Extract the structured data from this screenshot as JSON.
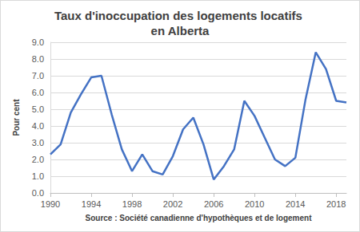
{
  "chart_data": {
    "type": "line",
    "title": "Taux d'inoccupation des logements locatifs en Alberta",
    "x_label": "Source : Société canadienne d'hypothèques et de logement",
    "y_label": "Pour cent",
    "x": [
      1990,
      1991,
      1992,
      1993,
      1994,
      1995,
      1996,
      1997,
      1998,
      1999,
      2000,
      2001,
      2002,
      2003,
      2004,
      2005,
      2006,
      2007,
      2008,
      2009,
      2010,
      2011,
      2012,
      2013,
      2014,
      2015,
      2016,
      2017,
      2018,
      2019
    ],
    "values": [
      2.3,
      2.9,
      4.8,
      5.9,
      6.9,
      7.0,
      4.7,
      2.6,
      1.3,
      2.3,
      1.3,
      1.1,
      2.2,
      3.8,
      4.5,
      2.9,
      0.8,
      1.6,
      2.6,
      5.5,
      4.6,
      3.3,
      2.0,
      1.6,
      2.1,
      5.6,
      8.4,
      7.4,
      5.5,
      5.4
    ],
    "color": "#4472c4",
    "marker": "none",
    "xlim": [
      1990,
      2019
    ],
    "xticks": [
      1990,
      1994,
      1998,
      2002,
      2006,
      2010,
      2014,
      2018
    ],
    "ylim": [
      0,
      9
    ],
    "yticks": [
      {
        "value": 0,
        "label": "0.0"
      },
      {
        "value": 1,
        "label": "1.0"
      },
      {
        "value": 2,
        "label": "2.0"
      },
      {
        "value": 3,
        "label": "3.0"
      },
      {
        "value": 4,
        "label": "4.0"
      },
      {
        "value": 5,
        "label": "5.0"
      },
      {
        "value": 6,
        "label": "6.0"
      },
      {
        "value": 7,
        "label": "7.0"
      },
      {
        "value": 8,
        "label": "8.0"
      },
      {
        "value": 9,
        "label": "9.0"
      }
    ],
    "grid": true
  }
}
